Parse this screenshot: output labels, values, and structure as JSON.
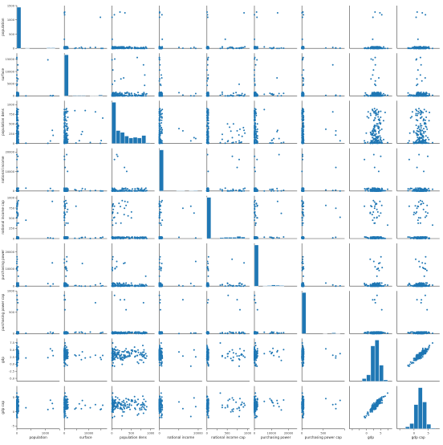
{
  "chart_data": {
    "type": "pairplot",
    "variables": [
      {
        "name": "population",
        "ticks": [
          0,
          500,
          1000,
          1500
        ],
        "range": [
          0,
          1500
        ]
      },
      {
        "name": "surface",
        "ticks": [
          0,
          5000,
          10000,
          15000
        ],
        "range": [
          0,
          17500
        ]
      },
      {
        "name": "population dens",
        "ticks": [
          0,
          250,
          500,
          750,
          1000
        ],
        "range": [
          0,
          1100
        ]
      },
      {
        "name": "national income",
        "ticks": [
          0,
          10000,
          20000
        ],
        "range": [
          0,
          22000
        ]
      },
      {
        "name": "national income cap",
        "ticks": [
          0,
          250,
          500,
          750,
          1000
        ],
        "range": [
          0,
          1050
        ]
      },
      {
        "name": "purchasing power",
        "ticks": [
          0,
          10000,
          20000
        ],
        "range": [
          0,
          25000
        ]
      },
      {
        "name": "purchasing power cap",
        "ticks": [
          0,
          500,
          1000
        ],
        "range": [
          0,
          1000
        ]
      },
      {
        "name": "gdp",
        "ticks": [
          -5.0,
          -2.5,
          0.0,
          2.5,
          5.0,
          7.5
        ],
        "range": [
          -6,
          9
        ]
      },
      {
        "name": "gdp cap",
        "ticks": [
          -5,
          0,
          5
        ],
        "range": [
          -6,
          9
        ]
      }
    ],
    "x_tick_labels": [
      "0",
      "1000",
      "0",
      "10000",
      "0",
      "500",
      "1000",
      "0",
      "20000",
      "0",
      "500",
      "1000",
      "0",
      "10000",
      "20000",
      "0",
      "500",
      "0",
      "5",
      "0",
      "5"
    ],
    "y_tick_labels": [
      [
        "1500",
        "1000",
        "500",
        "0"
      ],
      [
        "15000",
        "10000",
        "5000",
        "0"
      ],
      [
        "1000",
        "750",
        "500",
        "250",
        "0"
      ],
      [
        "20000",
        "10000",
        "0"
      ],
      [
        "1000",
        "750",
        "500",
        "250",
        "0"
      ],
      [
        "20000",
        "10000",
        "0"
      ],
      [
        "1000",
        "500",
        "0"
      ],
      [
        "7.5",
        "5.0",
        "2.5",
        "0.0",
        "-2.5",
        "-5.0"
      ],
      [
        "5",
        "0",
        "-5"
      ]
    ],
    "n_observations": 160,
    "diagonal": "histogram",
    "off_diagonal": "scatter",
    "color": "#1f77b4"
  }
}
